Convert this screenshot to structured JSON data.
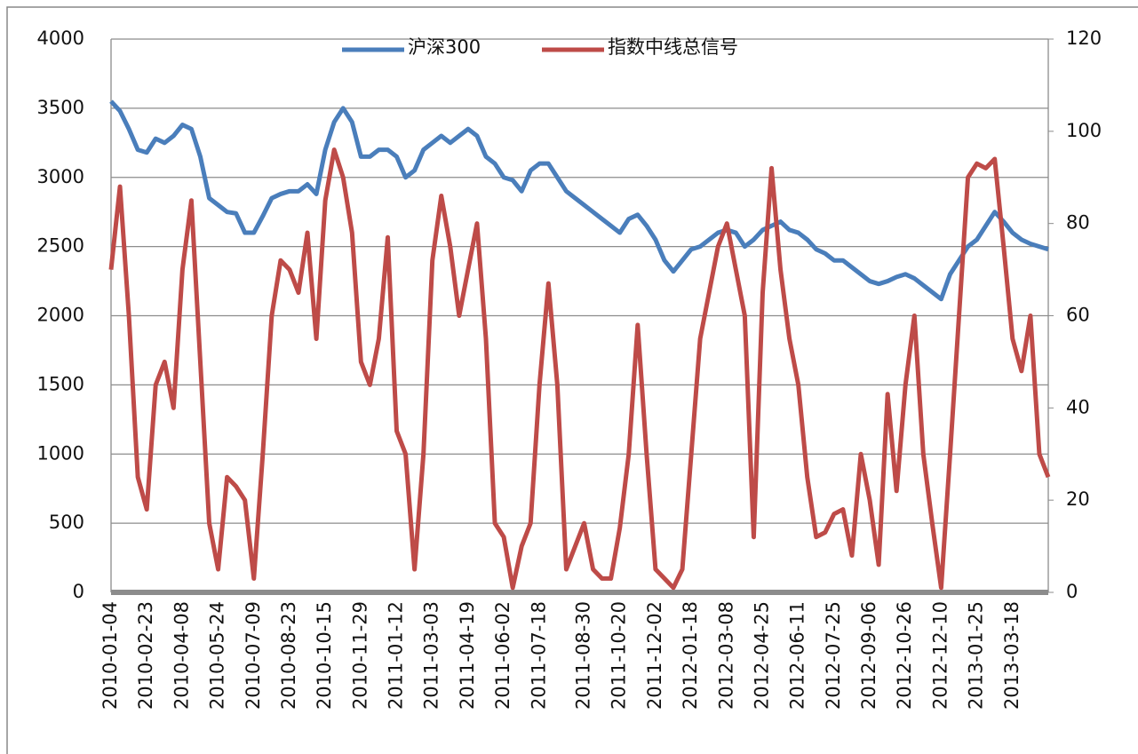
{
  "chart_data": {
    "type": "line",
    "categories": [
      "2010-01-04",
      null,
      null,
      null,
      "2010-02-23",
      null,
      null,
      null,
      "2010-04-08",
      null,
      null,
      null,
      "2010-05-24",
      null,
      null,
      null,
      "2010-07-09",
      null,
      null,
      null,
      "2010-08-23",
      null,
      null,
      null,
      "2010-10-15",
      null,
      null,
      null,
      "2010-11-29",
      null,
      null,
      null,
      "2011-01-12",
      null,
      null,
      null,
      "2011-03-03",
      null,
      null,
      null,
      "2011-04-19",
      null,
      null,
      null,
      "2011-06-02",
      null,
      null,
      null,
      "2011-07-18",
      null,
      null,
      null,
      null,
      "2011-08-30",
      null,
      null,
      null,
      "2011-10-20",
      null,
      null,
      null,
      "2011-12-02",
      null,
      null,
      null,
      "2012-01-18",
      null,
      null,
      null,
      "2012-03-08",
      null,
      null,
      null,
      "2012-04-25",
      null,
      null,
      null,
      "2012-06-11",
      null,
      null,
      null,
      "2012-07-25",
      null,
      null,
      null,
      "2012-09-06",
      null,
      null,
      null,
      "2012-10-26",
      null,
      null,
      null,
      "2012-12-10",
      null,
      null,
      null,
      "2013-01-25",
      null,
      null,
      null,
      "2013-03-18",
      null,
      null,
      null,
      null
    ],
    "series": [
      {
        "name": "沪深300",
        "color": "#4a7ebb",
        "axis": "y",
        "values": [
          3550,
          3480,
          3350,
          3200,
          3180,
          3280,
          3250,
          3300,
          3380,
          3350,
          3150,
          2850,
          2800,
          2750,
          2740,
          2600,
          2600,
          2720,
          2850,
          2880,
          2900,
          2900,
          2950,
          2880,
          3200,
          3400,
          3500,
          3400,
          3150,
          3150,
          3200,
          3200,
          3150,
          3000,
          3050,
          3200,
          3250,
          3300,
          3250,
          3300,
          3350,
          3300,
          3150,
          3100,
          3000,
          2980,
          2900,
          3050,
          3100,
          3100,
          3000,
          2900,
          2850,
          2800,
          2750,
          2700,
          2650,
          2600,
          2700,
          2730,
          2650,
          2550,
          2400,
          2320,
          2400,
          2480,
          2500,
          2550,
          2600,
          2620,
          2600,
          2500,
          2550,
          2620,
          2650,
          2680,
          2620,
          2600,
          2550,
          2480,
          2450,
          2400,
          2400,
          2350,
          2300,
          2250,
          2230,
          2250,
          2280,
          2300,
          2270,
          2220,
          2170,
          2120,
          2300,
          2400,
          2500,
          2550,
          2650,
          2750,
          2680,
          2600,
          2550,
          2520,
          2500,
          2480
        ]
      },
      {
        "name": "指数中线总信号",
        "color": "#be4b48",
        "axis": "y2",
        "values": [
          70,
          88,
          60,
          25,
          18,
          45,
          50,
          40,
          70,
          85,
          50,
          15,
          5,
          25,
          23,
          20,
          3,
          30,
          60,
          72,
          70,
          65,
          78,
          55,
          85,
          96,
          90,
          78,
          50,
          45,
          55,
          77,
          35,
          30,
          5,
          30,
          72,
          86,
          75,
          60,
          70,
          80,
          55,
          15,
          12,
          1,
          10,
          15,
          45,
          67,
          45,
          5,
          10,
          15,
          5,
          3,
          3,
          14,
          30,
          58,
          30,
          5,
          3,
          1,
          5,
          30,
          55,
          65,
          75,
          80,
          70,
          60,
          12,
          65,
          92,
          70,
          55,
          45,
          25,
          12,
          13,
          17,
          18,
          8,
          30,
          20,
          6,
          43,
          22,
          45,
          60,
          30,
          15,
          1,
          30,
          60,
          90,
          93,
          92,
          94,
          75,
          55,
          48,
          60,
          30,
          25
        ]
      }
    ],
    "ylim": [
      0,
      4000
    ],
    "yticks": [
      0,
      500,
      1000,
      1500,
      2000,
      2500,
      3000,
      3500,
      4000
    ],
    "y2lim": [
      0,
      120
    ],
    "y2ticks": [
      0,
      20,
      40,
      60,
      80,
      100,
      120
    ],
    "grid": true,
    "legend": "top"
  }
}
